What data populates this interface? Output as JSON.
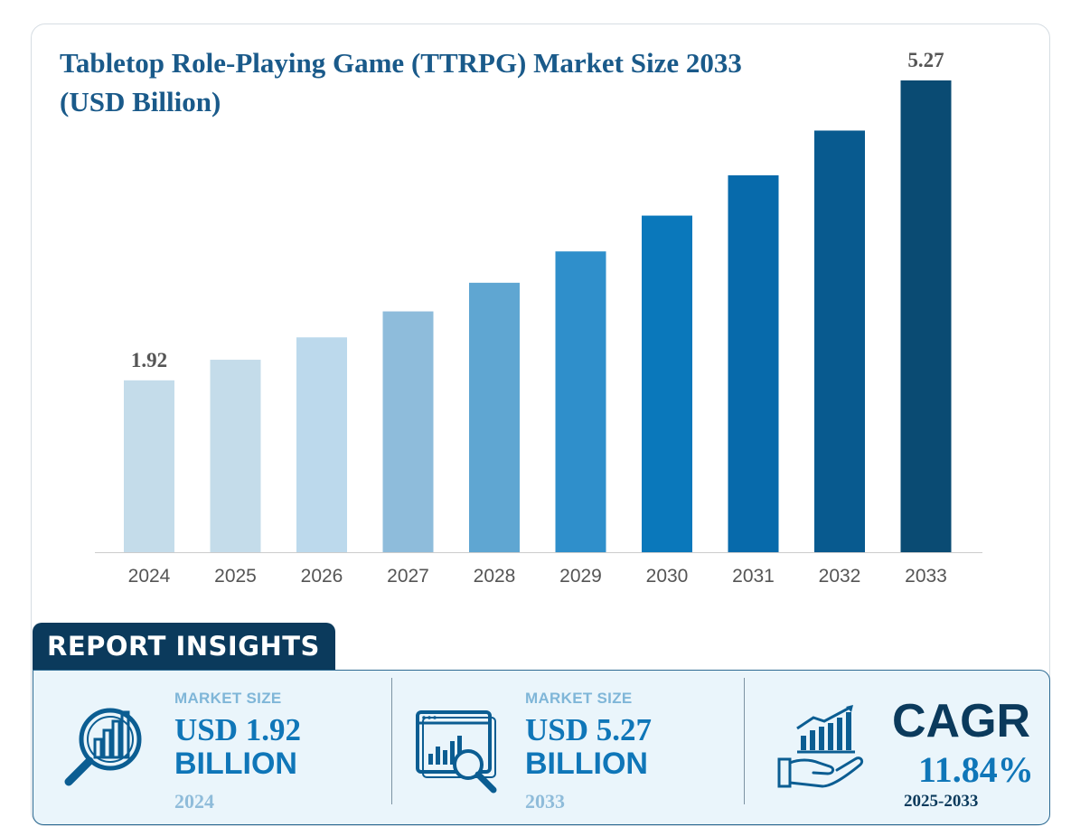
{
  "colors": {
    "title": "#1a5a8a",
    "bar_shades": [
      "#c4dcea",
      "#c4dcea",
      "#bcd9ec",
      "#8ebcdb",
      "#5fa6d2",
      "#2f8fcb",
      "#0a78bb",
      "#076aab",
      "#085a8f",
      "#0a4b73"
    ],
    "label_text": "#555555",
    "tab_bg": "#0b3a5c",
    "accent": "#0f76b8"
  },
  "chart_data": {
    "type": "bar",
    "title": "Tabletop Role-Playing Game (TTRPG) Market Size 2033 (USD Billion)",
    "categories": [
      "2024",
      "2025",
      "2026",
      "2027",
      "2028",
      "2029",
      "2030",
      "2031",
      "2032",
      "2033"
    ],
    "values": [
      1.92,
      2.15,
      2.4,
      2.69,
      3.01,
      3.36,
      3.76,
      4.21,
      4.71,
      5.27
    ],
    "data_labels": [
      {
        "index": 0,
        "text": "1.92"
      },
      {
        "index": 9,
        "text": "5.27"
      }
    ],
    "ylim": [
      0,
      5.27
    ],
    "grid": false,
    "xlabel": "",
    "ylabel": ""
  },
  "insights": {
    "tab_label": "REPORT INSIGHTS",
    "items": [
      {
        "label": "MARKET SIZE",
        "value": "USD 1.92",
        "unit": "BILLION",
        "year": "2024",
        "icon": "magnifier-chart-icon"
      },
      {
        "label": "MARKET SIZE",
        "value": "USD 5.27",
        "unit": "BILLION",
        "year": "2033",
        "icon": "screen-chart-magnifier-icon"
      }
    ],
    "cagr": {
      "title": "CAGR",
      "value": "11.84%",
      "period": "2025-2033",
      "icon": "hand-growth-chart-icon"
    }
  }
}
